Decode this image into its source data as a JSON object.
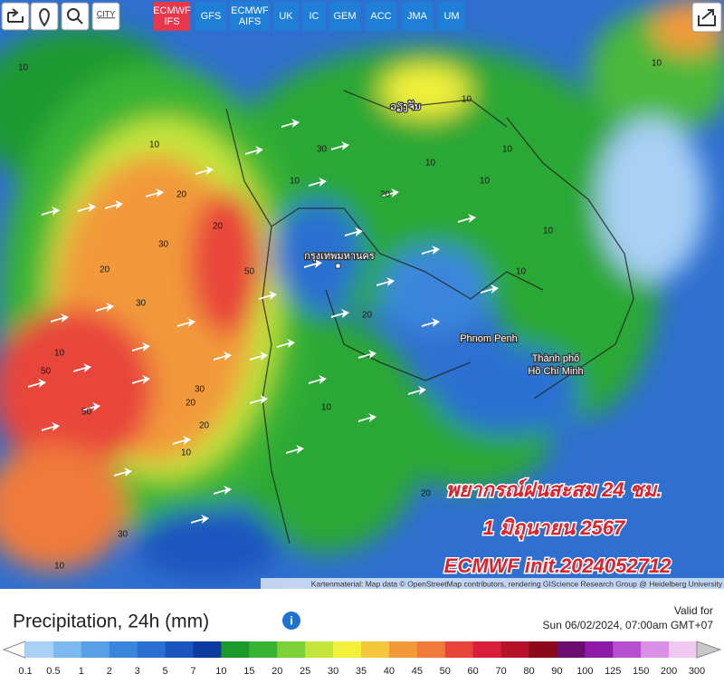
{
  "toolbar": {
    "city_button": "CITY",
    "models": [
      "ECMWF IFS",
      "GFS",
      "ECMWF AIFS",
      "UK",
      "IC",
      "GEM",
      "ACC",
      "JMA",
      "UM"
    ],
    "active_model": 0
  },
  "map": {
    "cities": [
      "กรุงเทพมหานคร",
      "Phnom Penh",
      "Thành phố",
      "Hồ Chí Minh",
      "ວຽງຈັນ"
    ],
    "contour_labels": [
      "10",
      "20",
      "10",
      "20",
      "10",
      "30",
      "20",
      "50",
      "50",
      "50",
      "30",
      "20",
      "30",
      "10",
      "20",
      "10",
      "30",
      "20",
      "10",
      "10",
      "10",
      "10",
      "10",
      "20",
      "10",
      "10",
      "10",
      "30",
      "10",
      "20"
    ],
    "overlay": [
      "พยากรณ์ฝนสะสม 24 ชม.",
      "1 มิถุนายน 2567",
      "ECMWF  init.2024052712"
    ],
    "attribution": "Kartenmaterial: Map data © OpenStreetMap contributors, rendering GIScience Research Group @ Heidelberg University"
  },
  "legend": {
    "title": "Precipitation, 24h (mm)",
    "valid_label": "Valid for",
    "valid_time": "Sun 06/02/2024, 07:00am GMT+07",
    "ticks": [
      "0.1",
      "0.5",
      "1",
      "2",
      "3",
      "5",
      "7",
      "10",
      "15",
      "20",
      "25",
      "30",
      "35",
      "40",
      "45",
      "50",
      "60",
      "70",
      "80",
      "90",
      "100",
      "125",
      "150",
      "200",
      "300"
    ],
    "colors": [
      "#a9d0f5",
      "#7db8ef",
      "#5aa0e6",
      "#3a86dc",
      "#2a6fd1",
      "#1a55bf",
      "#0d3a9e",
      "#1b9a2c",
      "#37b434",
      "#7dd23a",
      "#c4e63a",
      "#f2f03a",
      "#f5c73a",
      "#f29a3a",
      "#ef7a3a",
      "#e8453a",
      "#d81e3a",
      "#b5122a",
      "#8a0a1a",
      "#6a0d6e",
      "#8e1aa8",
      "#b84fd0",
      "#d990e6",
      "#f0c8f2"
    ]
  }
}
